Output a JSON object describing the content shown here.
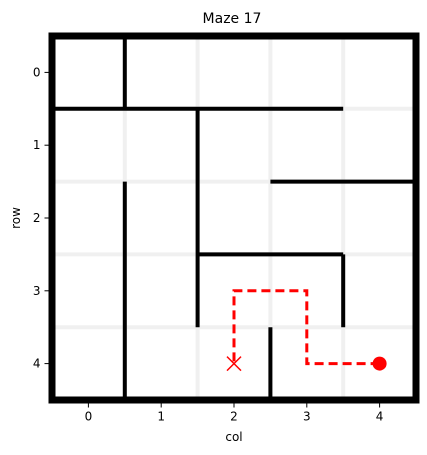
{
  "title": "Maze 17",
  "xlabel": "col",
  "ylabel": "row",
  "col_ticks": [
    "0",
    "1",
    "2",
    "3",
    "4"
  ],
  "row_ticks": [
    "0",
    "1",
    "2",
    "3",
    "4"
  ],
  "maze": {
    "rows": 5,
    "cols": 5,
    "h_walls": [
      {
        "row_boundary": 1,
        "from_col": 0,
        "to_col": 4
      },
      {
        "row_boundary": 2,
        "from_col": 3,
        "to_col": 5
      },
      {
        "row_boundary": 3,
        "from_col": 2,
        "to_col": 4
      }
    ],
    "v_walls": [
      {
        "col_boundary": 1,
        "from_row": 0,
        "to_row": 1
      },
      {
        "col_boundary": 1,
        "from_row": 2,
        "to_row": 5
      },
      {
        "col_boundary": 2,
        "from_row": 1,
        "to_row": 4
      },
      {
        "col_boundary": 3,
        "from_row": 4,
        "to_row": 5
      },
      {
        "col_boundary": 4,
        "from_row": 3,
        "to_row": 4
      }
    ],
    "start": {
      "row": 4,
      "col": 4
    },
    "goal": {
      "row": 4,
      "col": 2
    },
    "path": [
      {
        "row": 4,
        "col": 4
      },
      {
        "row": 4,
        "col": 3
      },
      {
        "row": 3,
        "col": 3
      },
      {
        "row": 3,
        "col": 2
      },
      {
        "row": 4,
        "col": 2
      }
    ]
  },
  "colors": {
    "wall": "#000000",
    "path": "#ff0000",
    "grid": "#f0f0f0",
    "background": "#ffffff"
  }
}
